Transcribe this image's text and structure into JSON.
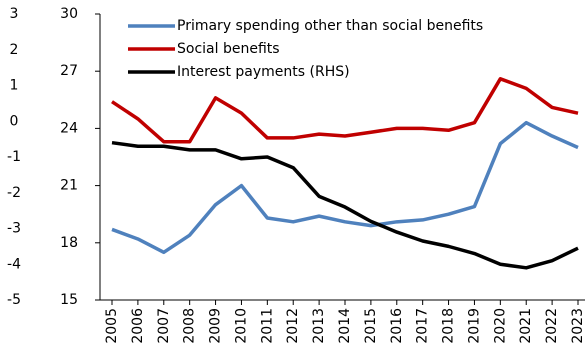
{
  "chart_data": {
    "type": "line",
    "x": [
      "2005",
      "2006",
      "2007",
      "2008",
      "2009",
      "2010",
      "2011",
      "2012",
      "2013",
      "2014",
      "2015",
      "2016",
      "2017",
      "2018",
      "2019",
      "2020",
      "2021",
      "2022",
      "2023"
    ],
    "series": [
      {
        "name": "Primary spending other than social benefits",
        "color": "#4f81bd",
        "values": [
          18.7,
          18.2,
          17.5,
          18.4,
          20.0,
          21.0,
          19.3,
          19.1,
          19.4,
          19.1,
          18.9,
          19.1,
          19.2,
          19.5,
          19.9,
          23.2,
          24.3,
          23.6,
          23.0
        ]
      },
      {
        "name": "Social benefits",
        "color": "#c00000",
        "values": [
          25.4,
          24.5,
          23.3,
          23.3,
          25.6,
          24.8,
          23.5,
          23.5,
          23.7,
          23.6,
          23.8,
          24.0,
          24.0,
          23.9,
          24.3,
          26.6,
          26.1,
          25.1,
          24.8
        ]
      },
      {
        "name": "Interest payments (RHS)",
        "color": "#000000",
        "axis": "y2",
        "values": [
          -0.6,
          -0.7,
          -0.7,
          -0.8,
          -0.8,
          -1.05,
          -1.0,
          -1.3,
          -2.1,
          -2.4,
          -2.8,
          -3.1,
          -3.35,
          -3.5,
          -3.7,
          -4.0,
          -4.1,
          -3.9,
          -3.55
        ]
      }
    ],
    "ylim": [
      15,
      30
    ],
    "yticks": [
      15,
      18,
      21,
      24,
      27,
      30
    ],
    "y2lim": [
      -5,
      3
    ],
    "y2ticks": [
      -5,
      -4,
      -3,
      -2,
      -1,
      0,
      1,
      2,
      3
    ],
    "legend": "upper-left",
    "grid": false
  }
}
